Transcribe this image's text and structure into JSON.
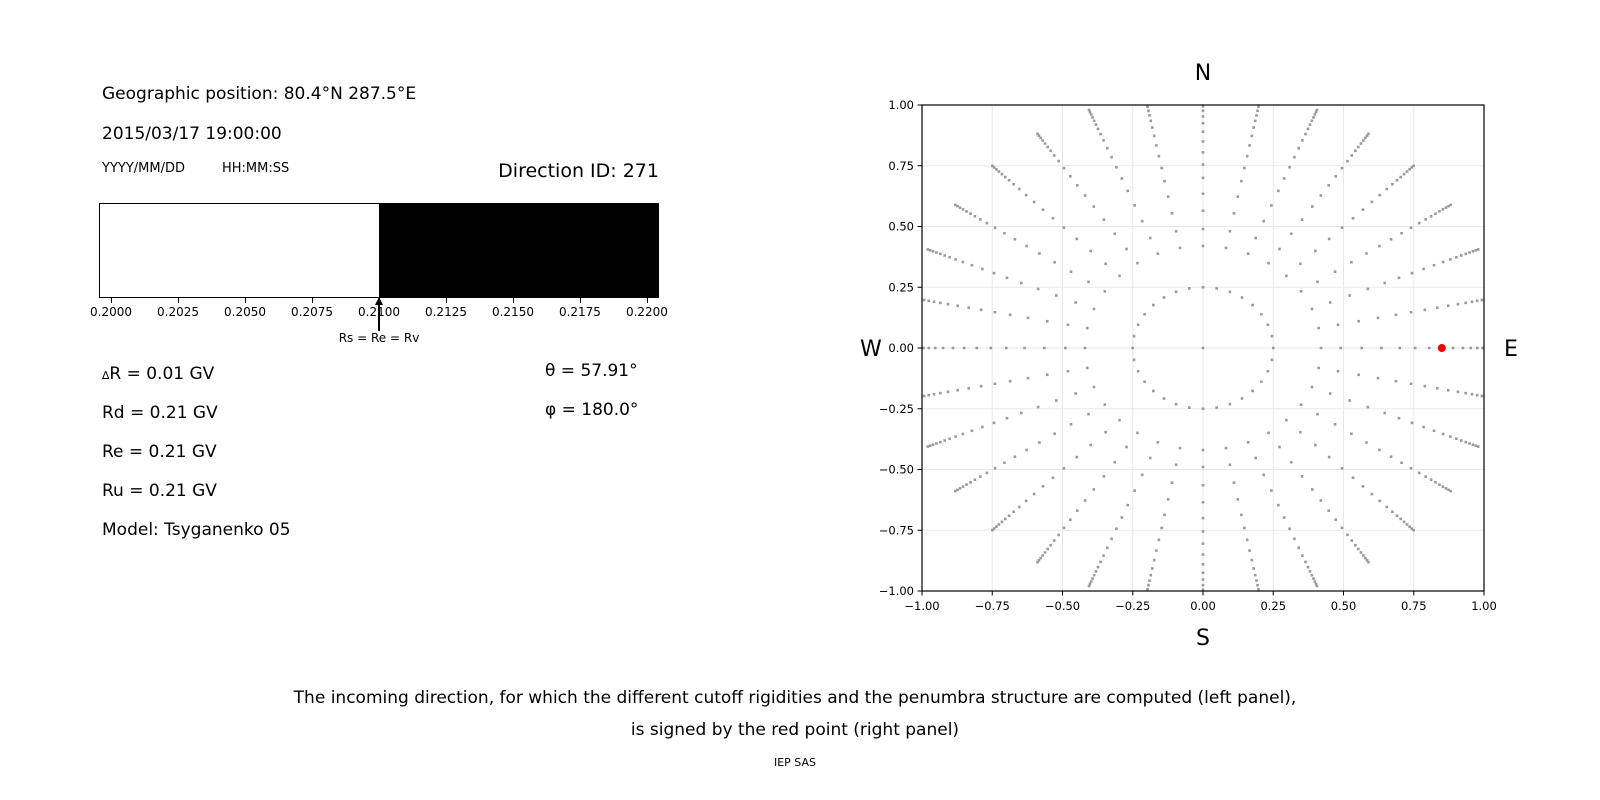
{
  "figure": {
    "left": {
      "geo_position": "Geographic position: 80.4°N 287.5°E",
      "datetime": "2015/03/17 19:00:00",
      "date_format": "YYYY/MM/DD",
      "time_format": "HH:MM:SS",
      "direction_id": "Direction ID: 271",
      "delta_symbol": "∆",
      "delta_rest": "R = 0.01 GV",
      "param_lines": [
        "Rd = 0.21 GV",
        "Re = 0.21 GV",
        "Ru = 0.21 GV",
        "Model: Tsyganenko 05"
      ],
      "theta": "θ = 57.91°",
      "phi": "φ = 180.0°"
    },
    "caption": {
      "line1": "The incoming direction, for which the different cutoff rigidities and the penumbra structure are computed (left panel),",
      "line2": "is signed by the red point (right panel)",
      "credit": "IEP SAS"
    }
  },
  "chart_data": [
    {
      "type": "bar",
      "title": "",
      "xlabel": "",
      "xlim": [
        0.19955,
        0.22045
      ],
      "x_ticks": [
        0.2,
        0.2025,
        0.205,
        0.2075,
        0.21,
        0.2125,
        0.215,
        0.2175,
        0.22
      ],
      "x_tick_labels": [
        "0.2000",
        "0.2025",
        "0.2050",
        "0.2075",
        "0.2100",
        "0.2125",
        "0.2150",
        "0.2175",
        "0.2200"
      ],
      "segments": [
        {
          "start": 0.19955,
          "end": 0.21,
          "color": "#ffffff"
        },
        {
          "start": 0.21,
          "end": 0.22045,
          "color": "#000000"
        }
      ],
      "annotation": {
        "text": "Rs = Re = Rv",
        "x": 0.21
      }
    },
    {
      "type": "scatter",
      "xlim": [
        -1.0,
        1.0
      ],
      "ylim": [
        -1.0,
        1.0
      ],
      "x_ticks": [
        -1.0,
        -0.75,
        -0.5,
        -0.25,
        0.0,
        0.25,
        0.5,
        0.75,
        1.0
      ],
      "x_tick_labels": [
        "−1.00",
        "−0.75",
        "−0.50",
        "−0.25",
        "0.00",
        "0.25",
        "0.50",
        "0.75",
        "1.00"
      ],
      "y_ticks": [
        -1.0,
        -0.75,
        -0.5,
        -0.25,
        0.0,
        0.25,
        0.5,
        0.75,
        1.0
      ],
      "y_tick_labels": [
        "−1.00",
        "−0.75",
        "−0.50",
        "−0.25",
        "0.00",
        "0.25",
        "0.50",
        "0.75",
        "1.00"
      ],
      "grid": true,
      "grid_color": "#e8e8e8",
      "compass": {
        "top": "N",
        "bottom": "S",
        "left": "W",
        "right": "E"
      },
      "point_color": "#9a9a9a",
      "spokes": {
        "count": 32,
        "step_deg": 11.25,
        "radii": [
          0.42,
          0.49,
          0.565,
          0.635,
          0.7,
          0.755,
          0.805,
          0.85,
          0.89,
          0.925,
          0.953,
          0.976,
          0.995,
          1.012,
          1.027,
          1.04,
          1.051,
          1.06
        ]
      },
      "inner_ring": {
        "radius": 0.25,
        "count": 32
      },
      "center_point": {
        "x": 0.0,
        "y": 0.0
      },
      "highlight_point": {
        "x": 0.85,
        "y": 0.0,
        "color": "#ee0000"
      }
    }
  ]
}
